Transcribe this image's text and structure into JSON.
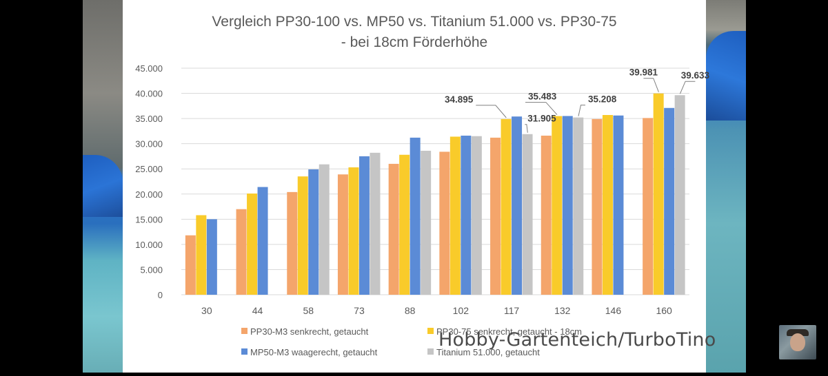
{
  "branding": {
    "watermark": "Hobby-Gartenteich/TurboTino",
    "avatar_icon": "channel-avatar-icon"
  },
  "colors": {
    "pp30_m3": "#F4A56B",
    "pp30_75": "#F9CB2A",
    "mp50_m3": "#5B8BD6",
    "titanium": "#C5C5C5",
    "grid": "#D9D9D9",
    "axis_text": "#595959",
    "title_text": "#595959"
  },
  "chart_data": {
    "type": "bar",
    "title": "Vergleich PP30-100 vs. MP50 vs. Titanium 51.000 vs. PP30-75",
    "subtitle": "- bei 18cm Förderhöhe",
    "xlabel": "",
    "ylabel": "",
    "ylim": [
      0,
      45000
    ],
    "yticks": [
      0,
      5000,
      10000,
      15000,
      20000,
      25000,
      30000,
      35000,
      40000,
      45000
    ],
    "ytick_labels": [
      "0",
      "5.000",
      "10.000",
      "15.000",
      "20.000",
      "25.000",
      "30.000",
      "35.000",
      "40.000",
      "45.000"
    ],
    "grid": true,
    "legend_position": "bottom",
    "categories": [
      "30",
      "44",
      "58",
      "73",
      "88",
      "102",
      "117",
      "132",
      "146",
      "160"
    ],
    "series": [
      {
        "name": "PP30-M3 senkrecht, getaucht",
        "color_key": "pp30_m3",
        "values": [
          11800,
          17000,
          20400,
          23900,
          26000,
          28400,
          31200,
          31600,
          34900,
          35100
        ]
      },
      {
        "name": "PP30-75 senkrecht, getaucht - 18cm",
        "color_key": "pp30_75",
        "values": [
          15800,
          20100,
          23500,
          25300,
          27800,
          31400,
          34895,
          35483,
          35700,
          39981
        ]
      },
      {
        "name": "MP50-M3 waagerecht, getaucht",
        "color_key": "mp50_m3",
        "values": [
          15000,
          21400,
          24900,
          27500,
          31200,
          31600,
          35400,
          35500,
          35600,
          37100
        ]
      },
      {
        "name": "Titanium 51.000, getaucht",
        "color_key": "titanium",
        "values": [
          null,
          null,
          25900,
          28200,
          28600,
          31500,
          31905,
          35208,
          null,
          39633
        ]
      }
    ],
    "annotations": [
      {
        "text": "34.895",
        "category": "117",
        "series": 1
      },
      {
        "text": "31.905",
        "category": "117",
        "series": 3
      },
      {
        "text": "35.483",
        "category": "132",
        "series": 1
      },
      {
        "text": "35.208",
        "category": "132",
        "series": 3
      },
      {
        "text": "39.981",
        "category": "160",
        "series": 1
      },
      {
        "text": "39.633",
        "category": "160",
        "series": 3
      }
    ]
  }
}
